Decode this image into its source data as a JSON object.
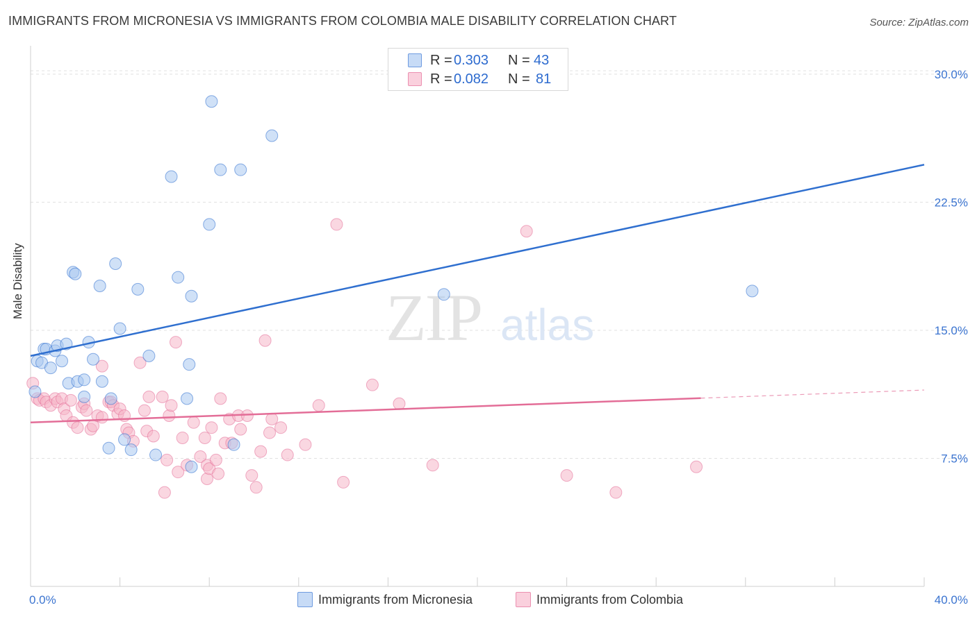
{
  "title": "IMMIGRANTS FROM MICRONESIA VS IMMIGRANTS FROM COLOMBIA MALE DISABILITY CORRELATION CHART",
  "source": "Source: ZipAtlas.com",
  "watermark": {
    "zip": "ZIP",
    "atlas": "atlas"
  },
  "legend_top": {
    "rows": [
      {
        "r_label": "R =",
        "r_value": "0.303",
        "n_label": "N =",
        "n_value": "43",
        "color": "#a9c8f1"
      },
      {
        "r_label": "R =",
        "r_value": "0.082",
        "n_label": "N =",
        "n_value": "81",
        "color": "#f5b6c9"
      }
    ]
  },
  "chart_data": {
    "type": "scatter",
    "title": "IMMIGRANTS FROM MICRONESIA VS IMMIGRANTS FROM COLOMBIA MALE DISABILITY CORRELATION CHART",
    "xlabel": "",
    "ylabel": "Male Disability",
    "xlim": [
      0,
      40
    ],
    "ylim": [
      0,
      31.5
    ],
    "x_tick_labels": [
      "0.0%",
      "40.0%"
    ],
    "y_ticks": [
      7.5,
      15.0,
      22.5,
      30.0
    ],
    "y_tick_labels": [
      "7.5%",
      "15.0%",
      "22.5%",
      "30.0%"
    ],
    "grid": "horizontal dashed",
    "legend": "bottom-center",
    "series": [
      {
        "name": "Immigrants from Micronesia",
        "color": "#2f6fcf",
        "fill": "#a9c8f1",
        "trend": {
          "x": [
            0,
            40
          ],
          "y": [
            13.5,
            24.7
          ],
          "dashed_from": null
        },
        "points": [
          [
            0.2,
            11.4
          ],
          [
            0.3,
            13.2
          ],
          [
            0.5,
            13.1
          ],
          [
            0.6,
            13.9
          ],
          [
            0.7,
            13.9
          ],
          [
            0.9,
            12.8
          ],
          [
            1.1,
            13.8
          ],
          [
            1.2,
            14.1
          ],
          [
            1.4,
            13.2
          ],
          [
            1.6,
            14.2
          ],
          [
            1.7,
            11.9
          ],
          [
            2.1,
            12.0
          ],
          [
            2.4,
            12.1
          ],
          [
            2.4,
            11.1
          ],
          [
            2.6,
            14.3
          ],
          [
            1.9,
            18.4
          ],
          [
            2.0,
            18.3
          ],
          [
            2.8,
            13.3
          ],
          [
            3.1,
            17.6
          ],
          [
            3.2,
            12.0
          ],
          [
            3.5,
            8.1
          ],
          [
            3.6,
            11.0
          ],
          [
            3.8,
            18.9
          ],
          [
            4.0,
            15.1
          ],
          [
            4.2,
            8.6
          ],
          [
            4.5,
            8.0
          ],
          [
            4.8,
            17.4
          ],
          [
            5.3,
            13.5
          ],
          [
            5.6,
            7.7
          ],
          [
            6.3,
            24.0
          ],
          [
            6.6,
            18.1
          ],
          [
            7.0,
            11.0
          ],
          [
            7.1,
            13.0
          ],
          [
            7.2,
            7.0
          ],
          [
            7.2,
            17.0
          ],
          [
            8.0,
            21.2
          ],
          [
            8.1,
            28.4
          ],
          [
            8.5,
            24.4
          ],
          [
            9.4,
            24.4
          ],
          [
            9.1,
            8.3
          ],
          [
            10.8,
            26.4
          ],
          [
            18.5,
            17.1
          ],
          [
            32.3,
            17.3
          ]
        ]
      },
      {
        "name": "Immigrants from Colombia",
        "color": "#e36d97",
        "fill": "#f5b6c9",
        "trend": {
          "x": [
            0,
            40
          ],
          "y": [
            9.6,
            11.5
          ],
          "dashed_from": 30
        },
        "points": [
          [
            0.1,
            11.9
          ],
          [
            0.3,
            11.0
          ],
          [
            0.4,
            10.9
          ],
          [
            0.6,
            11.0
          ],
          [
            0.7,
            10.8
          ],
          [
            0.9,
            10.6
          ],
          [
            1.1,
            11.0
          ],
          [
            1.2,
            10.8
          ],
          [
            1.4,
            11.0
          ],
          [
            1.5,
            10.4
          ],
          [
            1.6,
            10.0
          ],
          [
            1.8,
            10.9
          ],
          [
            1.9,
            9.6
          ],
          [
            2.1,
            9.3
          ],
          [
            2.3,
            10.5
          ],
          [
            2.4,
            10.7
          ],
          [
            2.5,
            10.3
          ],
          [
            2.7,
            9.2
          ],
          [
            2.8,
            9.4
          ],
          [
            3.0,
            10.0
          ],
          [
            3.2,
            9.9
          ],
          [
            3.2,
            12.9
          ],
          [
            3.5,
            10.8
          ],
          [
            3.6,
            10.8
          ],
          [
            3.7,
            10.6
          ],
          [
            3.9,
            10.1
          ],
          [
            4.0,
            10.4
          ],
          [
            4.2,
            10.0
          ],
          [
            4.3,
            9.2
          ],
          [
            4.4,
            9.0
          ],
          [
            4.6,
            8.5
          ],
          [
            4.9,
            13.1
          ],
          [
            5.1,
            10.3
          ],
          [
            5.2,
            9.1
          ],
          [
            5.3,
            11.1
          ],
          [
            5.5,
            8.8
          ],
          [
            5.9,
            11.1
          ],
          [
            6.0,
            5.5
          ],
          [
            6.1,
            7.4
          ],
          [
            6.2,
            10.0
          ],
          [
            6.3,
            10.6
          ],
          [
            6.5,
            14.3
          ],
          [
            6.6,
            6.7
          ],
          [
            6.8,
            8.7
          ],
          [
            7.0,
            7.1
          ],
          [
            7.3,
            9.6
          ],
          [
            7.6,
            7.6
          ],
          [
            7.8,
            8.7
          ],
          [
            7.9,
            6.3
          ],
          [
            7.9,
            7.1
          ],
          [
            8.0,
            6.9
          ],
          [
            8.1,
            9.3
          ],
          [
            8.3,
            7.4
          ],
          [
            8.4,
            6.6
          ],
          [
            8.5,
            11.0
          ],
          [
            8.7,
            8.4
          ],
          [
            8.9,
            9.8
          ],
          [
            9.0,
            8.4
          ],
          [
            9.3,
            10.0
          ],
          [
            9.4,
            9.2
          ],
          [
            9.7,
            10.0
          ],
          [
            9.9,
            6.5
          ],
          [
            10.1,
            5.8
          ],
          [
            10.3,
            7.9
          ],
          [
            10.5,
            14.4
          ],
          [
            10.7,
            9.0
          ],
          [
            10.8,
            9.8
          ],
          [
            11.2,
            9.3
          ],
          [
            11.5,
            7.7
          ],
          [
            12.3,
            8.3
          ],
          [
            12.9,
            10.6
          ],
          [
            14.0,
            6.1
          ],
          [
            13.7,
            21.2
          ],
          [
            15.3,
            11.8
          ],
          [
            16.5,
            10.7
          ],
          [
            18.0,
            7.1
          ],
          [
            22.2,
            20.8
          ],
          [
            24.0,
            6.5
          ],
          [
            26.2,
            5.5
          ],
          [
            29.8,
            7.0
          ],
          [
            21.0,
            30.0
          ]
        ]
      }
    ]
  }
}
